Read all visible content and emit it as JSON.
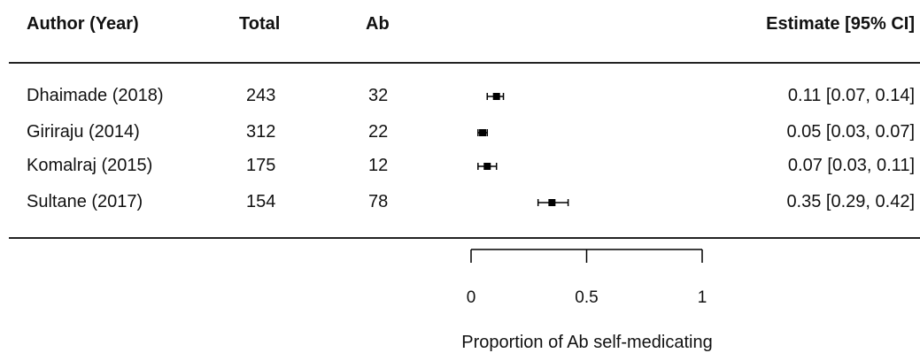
{
  "chart_data": {
    "type": "forest",
    "columns": {
      "author": "Author (Year)",
      "total": "Total",
      "ab": "Ab",
      "estimate": "Estimate [95% CI]"
    },
    "studies": [
      {
        "author": "Dhaimade (2018)",
        "total": "243",
        "ab": "32",
        "estimate": 0.11,
        "lower": 0.07,
        "upper": 0.14,
        "label": "0.11 [0.07, 0.14]"
      },
      {
        "author": "Giriraju (2014)",
        "total": "312",
        "ab": "22",
        "estimate": 0.05,
        "lower": 0.03,
        "upper": 0.07,
        "label": "0.05 [0.03, 0.07]"
      },
      {
        "author": "Komalraj (2015)",
        "total": "175",
        "ab": "12",
        "estimate": 0.07,
        "lower": 0.03,
        "upper": 0.11,
        "label": "0.07 [0.03, 0.11]"
      },
      {
        "author": "Sultane (2017)",
        "total": "154",
        "ab": "78",
        "estimate": 0.35,
        "lower": 0.29,
        "upper": 0.42,
        "label": "0.35 [0.29, 0.42]"
      }
    ],
    "xlim": [
      0,
      1
    ],
    "xticks": [
      "0",
      "0.5",
      "1"
    ],
    "xlabel": "Proportion of Ab self-medicating"
  }
}
